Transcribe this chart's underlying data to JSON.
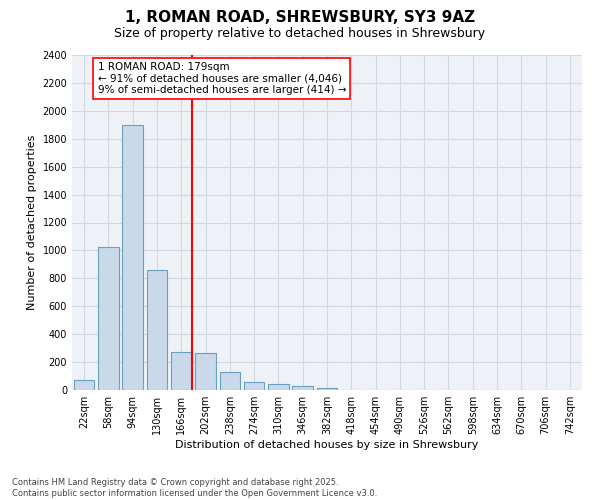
{
  "title": "1, ROMAN ROAD, SHREWSBURY, SY3 9AZ",
  "subtitle": "Size of property relative to detached houses in Shrewsbury",
  "xlabel": "Distribution of detached houses by size in Shrewsbury",
  "ylabel": "Number of detached properties",
  "categories": [
    "22sqm",
    "58sqm",
    "94sqm",
    "130sqm",
    "166sqm",
    "202sqm",
    "238sqm",
    "274sqm",
    "310sqm",
    "346sqm",
    "382sqm",
    "418sqm",
    "454sqm",
    "490sqm",
    "526sqm",
    "562sqm",
    "598sqm",
    "634sqm",
    "670sqm",
    "706sqm",
    "742sqm"
  ],
  "values": [
    75,
    1025,
    1900,
    860,
    270,
    265,
    130,
    60,
    45,
    30,
    15,
    0,
    0,
    0,
    0,
    0,
    0,
    0,
    0,
    0,
    0
  ],
  "bar_color": "#c9d9ea",
  "bar_edge_color": "#6a9fc0",
  "bar_edge_width": 0.8,
  "grid_color": "#d0d8e4",
  "bg_color": "#eef2f7",
  "ylim": [
    0,
    2400
  ],
  "yticks": [
    0,
    200,
    400,
    600,
    800,
    1000,
    1200,
    1400,
    1600,
    1800,
    2000,
    2200,
    2400
  ],
  "property_label": "1 ROMAN ROAD: 179sqm",
  "annotation_line1": "← 91% of detached houses are smaller (4,046)",
  "annotation_line2": "9% of semi-detached houses are larger (414) →",
  "red_line_bar_idx": 4,
  "red_line_bar_width": 0.85,
  "footer_line1": "Contains HM Land Registry data © Crown copyright and database right 2025.",
  "footer_line2": "Contains public sector information licensed under the Open Government Licence v3.0.",
  "title_fontsize": 11,
  "subtitle_fontsize": 9,
  "axis_label_fontsize": 8,
  "tick_fontsize": 7,
  "annotation_fontsize": 7.5,
  "footer_fontsize": 6
}
